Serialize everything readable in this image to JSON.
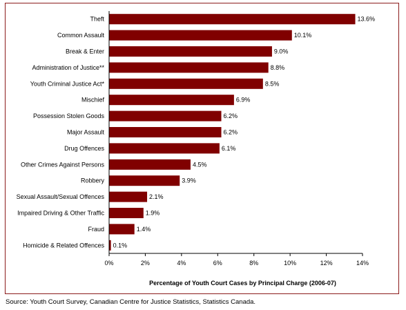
{
  "chart_data": {
    "type": "bar",
    "orientation": "horizontal",
    "categories": [
      "Theft",
      "Common Assault",
      "Break & Enter",
      "Administration of Justice**",
      "Youth Criminal Justice Act*",
      "Mischief",
      "Possession Stolen Goods",
      "Major Assault",
      "Drug Offences",
      "Other Crimes Against Persons",
      "Robbery",
      "Sexual Assault/Sexual Offences",
      "Impaired Driving & Other Traffic",
      "Fraud",
      "Homicide & Related Offences"
    ],
    "values": [
      13.6,
      10.1,
      9.0,
      8.8,
      8.5,
      6.9,
      6.2,
      6.2,
      6.1,
      4.5,
      3.9,
      2.1,
      1.9,
      1.4,
      0.1
    ],
    "value_labels": [
      "13.6%",
      "10.1%",
      "9.0%",
      "8.8%",
      "8.5%",
      "6.9%",
      "6.2%",
      "6.2%",
      "6.1%",
      "4.5%",
      "3.9%",
      "2.1%",
      "1.9%",
      "1.4%",
      "0.1%"
    ],
    "xlim": [
      0,
      14
    ],
    "xticks": [
      0,
      2,
      4,
      6,
      8,
      10,
      12,
      14
    ],
    "xtick_labels": [
      "0%",
      "2%",
      "4%",
      "6%",
      "8%",
      "10%",
      "12%",
      "14%"
    ],
    "xlabel": "Percentage of Youth Court Cases by Principal Charge (2006-07)",
    "ylabel": "",
    "grid": false,
    "legend": "none",
    "bar_color": "#800000",
    "frame_color": "#8b1a1a"
  },
  "source": "Source:  Youth Court Survey, Canadian Centre for Justice Statistics, Statistics Canada."
}
